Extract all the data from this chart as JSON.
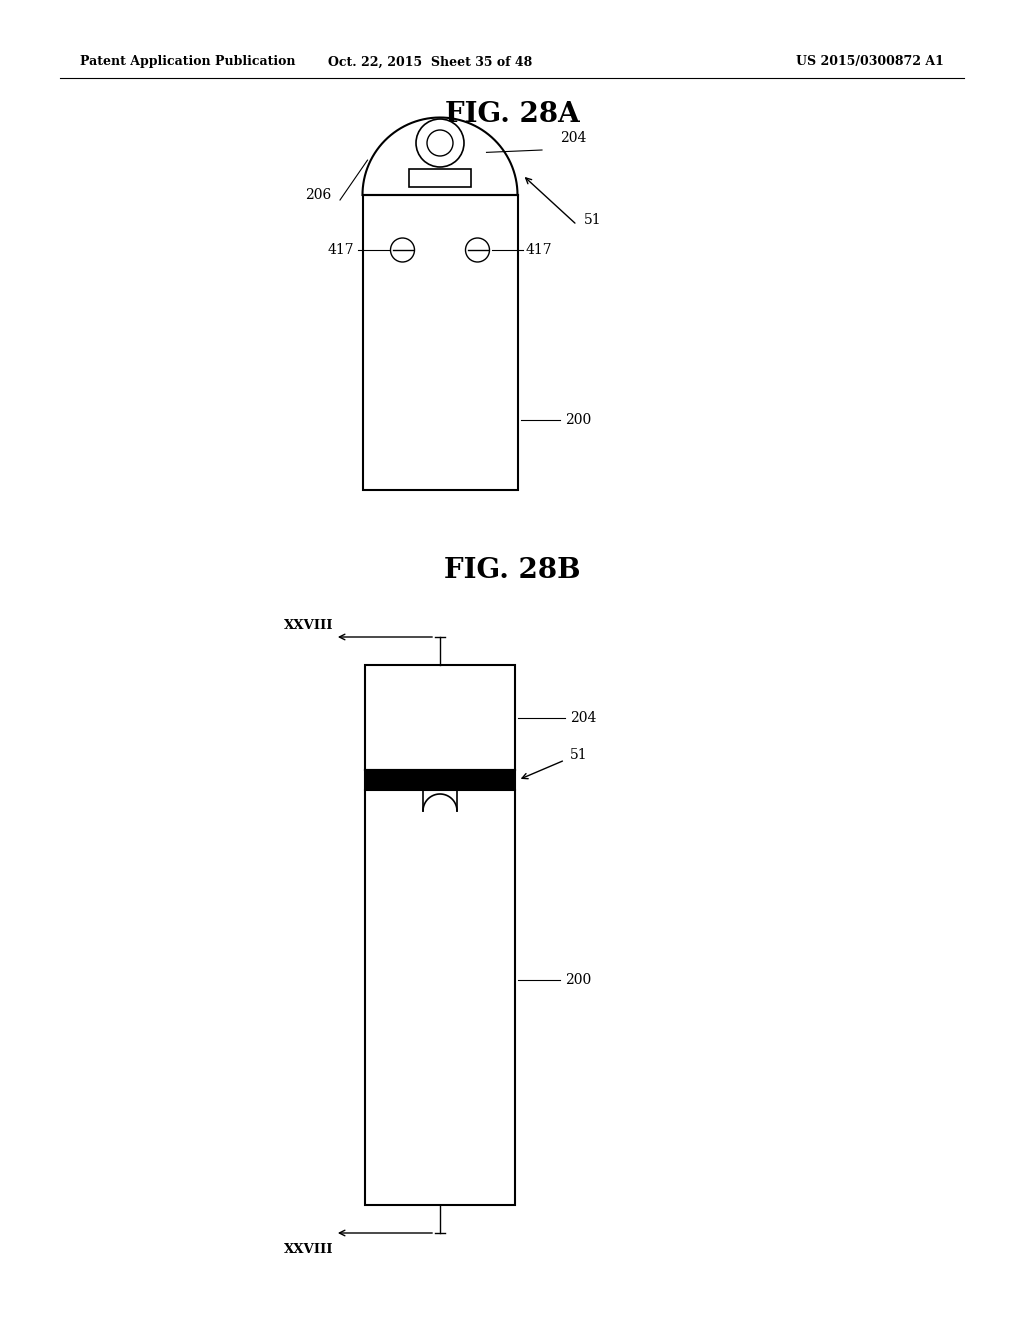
{
  "bg_color": "#ffffff",
  "line_color": "#000000",
  "header_left": "Patent Application Publication",
  "header_mid": "Oct. 22, 2015  Sheet 35 of 48",
  "header_right": "US 2015/0300872 A1",
  "fig_a_title": "FIG. 28A",
  "fig_b_title": "FIG. 28B",
  "lfs": 10
}
